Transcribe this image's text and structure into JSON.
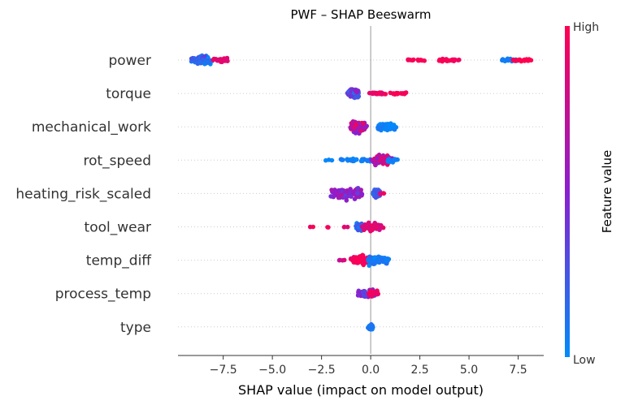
{
  "chart_data": {
    "type": "scatter",
    "subtype": "beeswarm",
    "title": "PWF – SHAP Beeswarm",
    "xlabel": "SHAP value (impact on model output)",
    "xlim": [
      -9.8,
      8.8
    ],
    "xticks": [
      -7.5,
      -5.0,
      -2.5,
      0.0,
      2.5,
      5.0,
      7.5
    ],
    "xtick_labels": [
      "−7.5",
      "−5.0",
      "−2.5",
      "0.0",
      "2.5",
      "5.0",
      "7.5"
    ],
    "zero_line": 0,
    "colorbar": {
      "label": "Feature value",
      "high_label": "High",
      "low_label": "Low",
      "low_color": "#008bfb",
      "high_color": "#ff0051"
    },
    "features": [
      {
        "name": "power",
        "clusters": [
          [
            -8.6,
            0.8,
            0.25,
            120,
            0.0,
            0.4
          ],
          [
            -7.6,
            0.6,
            0.12,
            30,
            0.8,
            1.0
          ],
          [
            2.3,
            1.1,
            0.05,
            16,
            0.95,
            1.0
          ],
          [
            4.0,
            1.0,
            0.08,
            24,
            0.9,
            1.0
          ],
          [
            7.0,
            0.7,
            0.08,
            20,
            0.0,
            0.1
          ],
          [
            7.7,
            0.8,
            0.08,
            26,
            1.0,
            1.0
          ]
        ]
      },
      {
        "name": "torque",
        "clusters": [
          [
            -0.9,
            0.5,
            0.3,
            100,
            0.1,
            0.6
          ],
          [
            0.3,
            0.7,
            0.06,
            20,
            0.85,
            1.0
          ],
          [
            1.4,
            0.7,
            0.06,
            20,
            0.95,
            1.0
          ]
        ]
      },
      {
        "name": "mechanical_work",
        "clusters": [
          [
            -0.6,
            0.7,
            0.3,
            90,
            0.4,
            1.0
          ],
          [
            0.8,
            0.8,
            0.25,
            70,
            0.0,
            0.1
          ]
        ]
      },
      {
        "name": "rot_speed",
        "clusters": [
          [
            -2.0,
            1.0,
            0.04,
            4,
            0.0,
            0.05
          ],
          [
            -0.6,
            1.6,
            0.08,
            40,
            0.0,
            0.1
          ],
          [
            0.6,
            0.8,
            0.3,
            80,
            0.5,
            1.0
          ],
          [
            1.1,
            0.5,
            0.1,
            15,
            0.0,
            0.1
          ]
        ]
      },
      {
        "name": "heating_risk_scaled",
        "clusters": [
          [
            -1.2,
            1.4,
            0.3,
            110,
            0.35,
            0.7
          ],
          [
            0.3,
            0.4,
            0.25,
            30,
            0.1,
            0.3
          ],
          [
            0.6,
            0.3,
            0.05,
            6,
            0.8,
            1.0
          ]
        ]
      },
      {
        "name": "tool_wear",
        "clusters": [
          [
            -3.0,
            0.2,
            0.03,
            2,
            0.85,
            1.0
          ],
          [
            -2.2,
            0.2,
            0.03,
            2,
            0.85,
            1.0
          ],
          [
            -1.3,
            0.2,
            0.03,
            3,
            0.85,
            1.0
          ],
          [
            -0.5,
            0.4,
            0.25,
            60,
            0.0,
            0.3
          ],
          [
            0.1,
            0.8,
            0.25,
            70,
            0.75,
            1.0
          ]
        ]
      },
      {
        "name": "temp_diff",
        "clusters": [
          [
            -1.5,
            0.4,
            0.04,
            4,
            0.7,
            1.0
          ],
          [
            -0.4,
            1.0,
            0.28,
            100,
            0.9,
            1.0
          ],
          [
            0.4,
            1.0,
            0.25,
            60,
            0.0,
            0.15
          ]
        ]
      },
      {
        "name": "process_temp",
        "clusters": [
          [
            -0.2,
            0.8,
            0.22,
            60,
            0.2,
            0.6
          ],
          [
            0.15,
            0.4,
            0.2,
            40,
            0.85,
            1.0
          ]
        ]
      },
      {
        "name": "type",
        "clusters": [
          [
            0.0,
            0.2,
            0.15,
            50,
            0.0,
            0.15
          ]
        ]
      }
    ]
  }
}
